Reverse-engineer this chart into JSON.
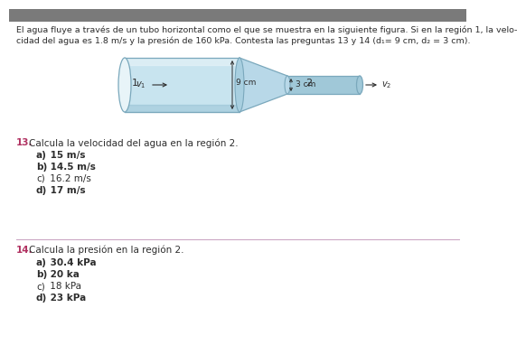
{
  "white": "#ffffff",
  "header_line1": "El agua fluye a través de un tubo horizontal como el que se muestra en la siguiente figura. Si en la región 1, la velo-",
  "header_line2": "cidad del agua es 1.8 m/s y la presión de 160 kPa. Contesta las preguntas 13 y 14 (d₁= 9 cm, d₂ = 3 cm).",
  "q13_number": "13.",
  "q13_text": "Calcula la velocidad del agua en la región 2.",
  "q13_options": [
    {
      "letter": "a)",
      "text": " 15 m/s",
      "bold": true
    },
    {
      "letter": "b)",
      "text": " 14.5 m/s",
      "bold": true
    },
    {
      "letter": "c)",
      "text": " 16.2 m/s",
      "bold": false
    },
    {
      "letter": "d)",
      "text": " 17 m/s",
      "bold": true
    }
  ],
  "q14_number": "14.",
  "q14_text": "Calcula la presión en la región 2.",
  "q14_options": [
    {
      "letter": "a)",
      "text": " 30.4 kPa",
      "bold": true
    },
    {
      "letter": "b)",
      "text": " 20 ka",
      "bold": true
    },
    {
      "letter": "c)",
      "text": " 18 kPa",
      "bold": false
    },
    {
      "letter": "d)",
      "text": " 23 kPa",
      "bold": true
    }
  ],
  "number_color": "#b03060",
  "text_color": "#2c2c2c",
  "separator_color": "#c8a0c0",
  "top_bar_color": "#7a7a7a",
  "pipe_body": "#c8e4ef",
  "pipe_body2": "#a8cfe0",
  "pipe_highlight": "#e8f4f8",
  "pipe_shadow": "#88b8cc",
  "pipe_edge": "#7aa8bc",
  "taper_fill": "#b8d8e8",
  "narrow_fill": "#a0c8d8"
}
